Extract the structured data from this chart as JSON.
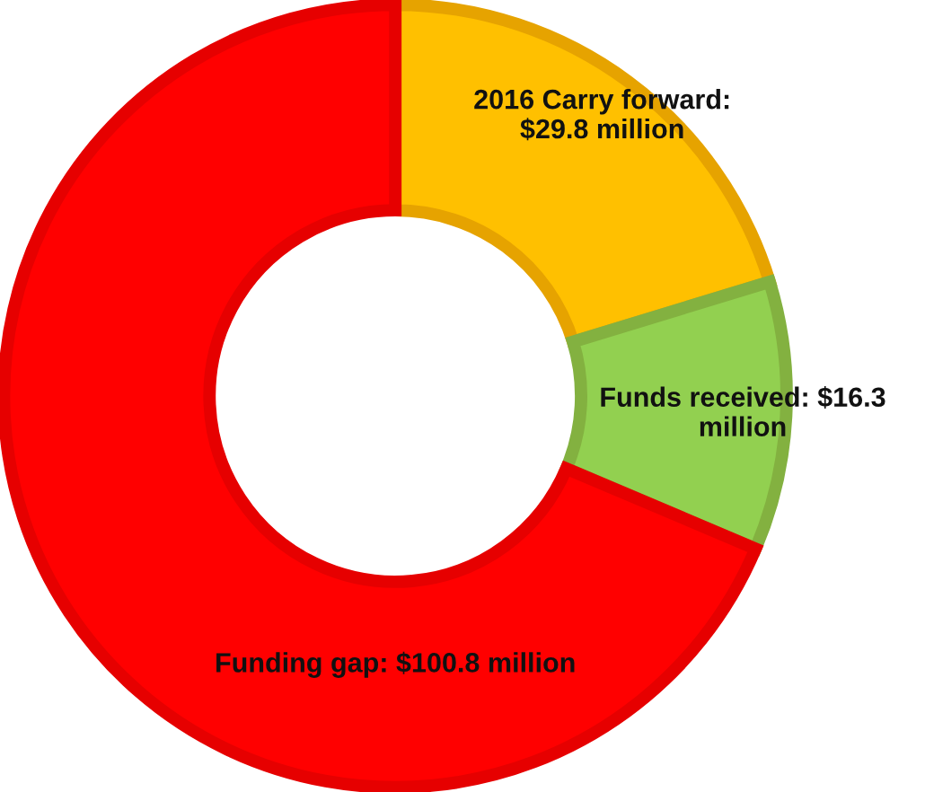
{
  "chart_data": {
    "type": "donut",
    "categories": [
      "2016 Carry forward: $29.8 million",
      "Funds received: $16.3 million",
      "Funding gap: $100.8 million"
    ],
    "values": [
      29.8,
      16.3,
      100.8
    ],
    "colors": [
      "#ffc000",
      "#92d050",
      "#ff0000"
    ],
    "legend": false
  }
}
